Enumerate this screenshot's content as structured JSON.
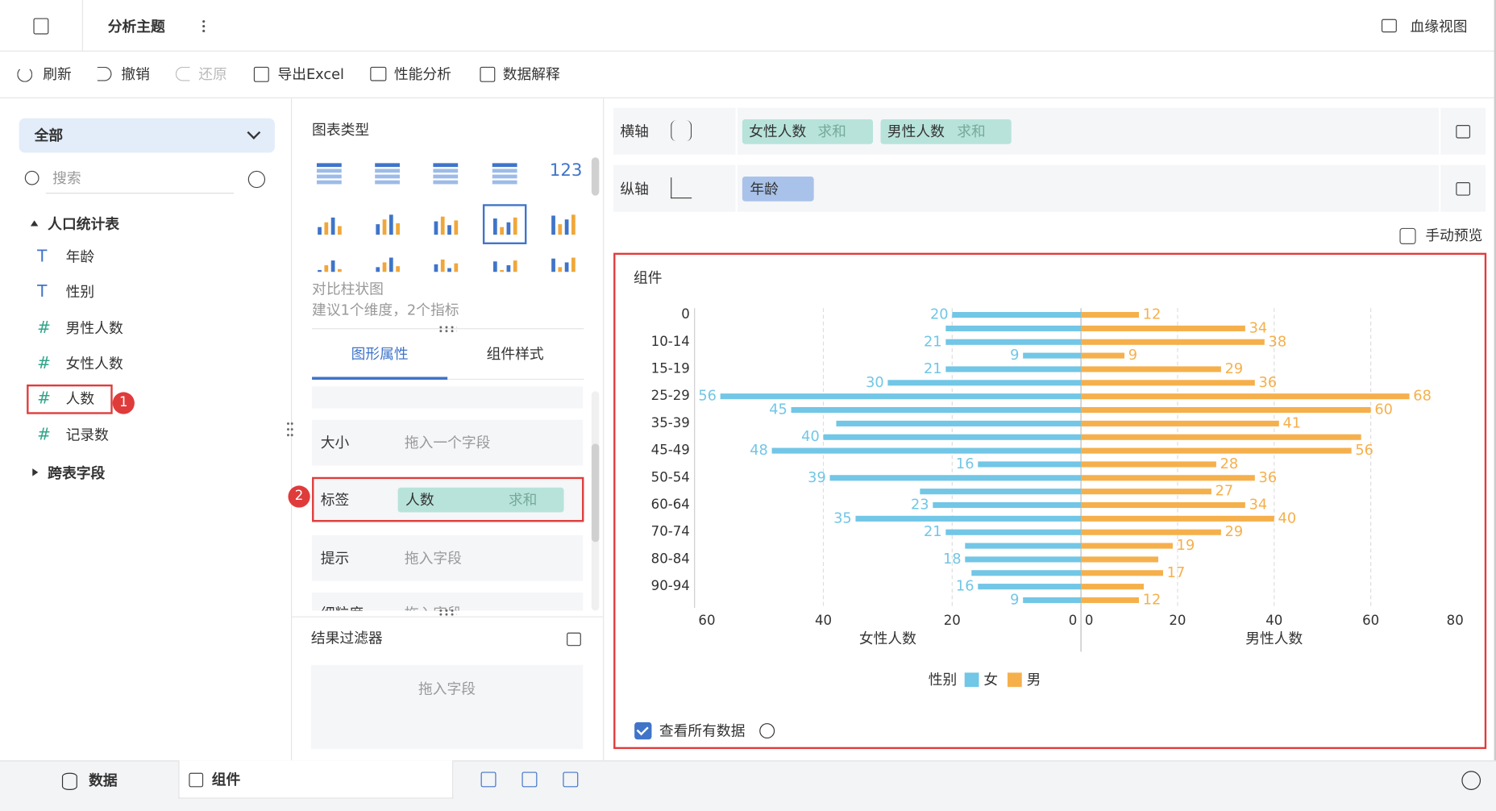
{
  "header": {
    "title": "分析主题",
    "lineage_view": "血缘视图"
  },
  "toolbar": [
    "刷新",
    "撤销",
    "还原",
    "导出Excel",
    "性能分析",
    "数据解释"
  ],
  "left_panel": {
    "scope": "全部",
    "search_placeholder": "搜索",
    "table": "人口统计表",
    "fields": [
      {
        "icon": "T",
        "name": "年龄"
      },
      {
        "icon": "T",
        "name": "性别"
      },
      {
        "icon": "#",
        "name": "男性人数"
      },
      {
        "icon": "#",
        "name": "女性人数"
      },
      {
        "icon": "#",
        "name": "人数"
      },
      {
        "icon": "#",
        "name": "记录数"
      }
    ],
    "cross_table": "跨表字段"
  },
  "annotations": [
    "1",
    "2"
  ],
  "middle_panel": {
    "chart_types_title": "图表类型",
    "chart_type_icon_text": "123",
    "chart_name": "对比柱状图",
    "chart_hint": "建议1个维度，2个指标",
    "tabs": [
      "图形属性",
      "组件样式"
    ],
    "properties": [
      {
        "label": "大小",
        "placeholder": "拖入一个字段"
      },
      {
        "label": "标签",
        "field": "人数",
        "aggregation": "求和"
      },
      {
        "label": "提示",
        "placeholder": "拖入字段"
      },
      {
        "label": "细粒度",
        "placeholder": "拖入字段"
      }
    ],
    "filter_title": "结果过滤器",
    "filter_placeholder": "拖入字段"
  },
  "right_panel": {
    "x_axis": {
      "label": "横轴",
      "fields": [
        {
          "name": "女性人数",
          "aggregation": "求和"
        },
        {
          "name": "男性人数",
          "aggregation": "求和"
        }
      ]
    },
    "y_axis": {
      "label": "纵轴",
      "fields": [
        {
          "name": "年龄"
        }
      ]
    },
    "manual_preview": "手动预览",
    "view_all_data": "查看所有数据"
  },
  "bottom_tabs": [
    "数据",
    "组件"
  ],
  "chart_data": {
    "type": "butterfly",
    "title": "组件",
    "legend_title": "性别",
    "categories": [
      "0",
      null,
      "10-14",
      null,
      "15-19",
      null,
      "25-29",
      null,
      "35-39",
      null,
      "45-49",
      null,
      "50-54",
      null,
      "60-64",
      null,
      "70-74",
      null,
      "80-84",
      null,
      "90-94",
      null
    ],
    "series": [
      {
        "name": "女",
        "color": "#72c6e6",
        "axis_title": "女性人数",
        "xlim": [
          0,
          60
        ],
        "xticks": [
          0,
          20,
          40,
          60
        ],
        "values": [
          20,
          21,
          21,
          9,
          21,
          30,
          56,
          45,
          38,
          40,
          48,
          16,
          39,
          25,
          23,
          35,
          21,
          18,
          18,
          17,
          16,
          9
        ],
        "value_labels": [
          "20",
          null,
          "21",
          "9",
          "21",
          "30",
          "56",
          "45",
          null,
          "40",
          "48",
          "16",
          "39",
          null,
          "23",
          "35",
          "21",
          null,
          "18",
          null,
          "16",
          "9"
        ]
      },
      {
        "name": "男",
        "color": "#f5b04c",
        "axis_title": "男性人数",
        "xlim": [
          0,
          80
        ],
        "xticks": [
          0,
          20,
          40,
          60,
          80
        ],
        "values": [
          12,
          34,
          38,
          9,
          29,
          36,
          68,
          60,
          41,
          58,
          56,
          28,
          36,
          27,
          34,
          40,
          29,
          19,
          16,
          17,
          13,
          12
        ],
        "value_labels": [
          "12",
          "34",
          "38",
          "9",
          "29",
          "36",
          "68",
          "60",
          "41",
          null,
          "56",
          "28",
          "36",
          "27",
          "34",
          "40",
          "29",
          "19",
          null,
          "17",
          null,
          "12"
        ]
      }
    ]
  }
}
